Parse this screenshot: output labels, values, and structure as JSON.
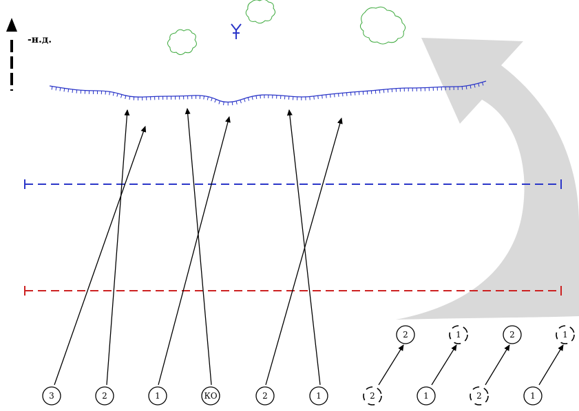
{
  "direction_label": "-н.д.",
  "colors": {
    "enemy_line": "#2a35c8",
    "blue_line": "#2a35c8",
    "red_line": "#cc2020",
    "obstacles": "#3aa83a",
    "maneuver_arrow": "#d9d9d9",
    "attack_arrows": "#000000"
  },
  "units_front": [
    {
      "label": "3"
    },
    {
      "label": "2"
    },
    {
      "label": "1"
    },
    {
      "label": "КО"
    },
    {
      "label": "2"
    },
    {
      "label": "1"
    }
  ],
  "units_reserve": [
    {
      "label": "2",
      "style": "dashed"
    },
    {
      "label": "1",
      "style": "solid"
    },
    {
      "label": "2",
      "style": "dashed"
    },
    {
      "label": "1",
      "style": "solid"
    }
  ],
  "units_forward": [
    {
      "label": "2",
      "style": "solid"
    },
    {
      "label": "1",
      "style": "dashed"
    },
    {
      "label": "2",
      "style": "solid"
    },
    {
      "label": "1",
      "style": "dashed"
    }
  ],
  "icons": {
    "north_arrow": "north-arrow-icon",
    "enemy_symbol": "enemy-fork-icon",
    "obstacle": "cloud-obstacle-icon"
  }
}
